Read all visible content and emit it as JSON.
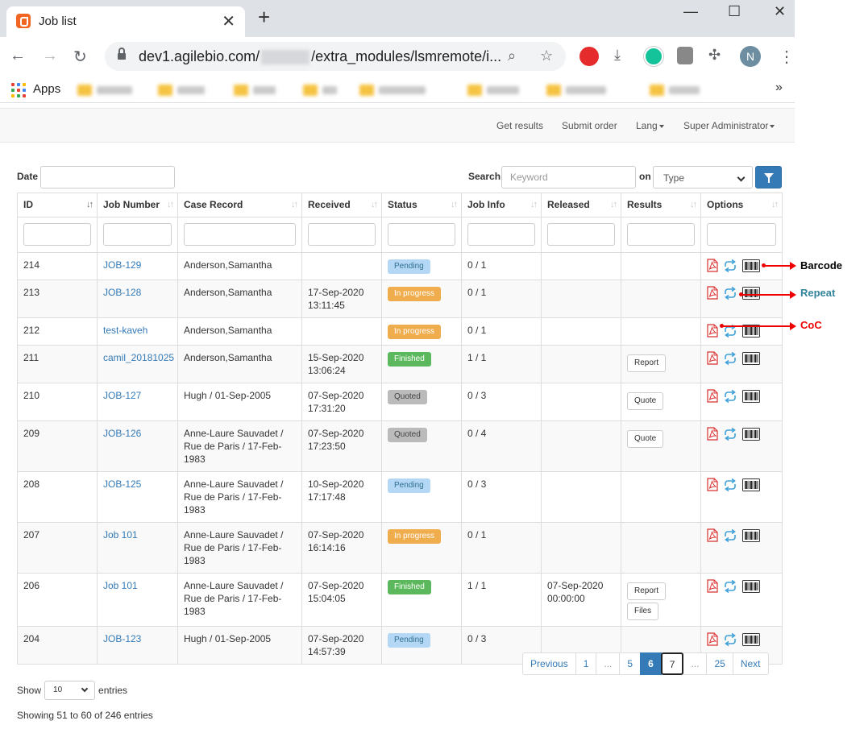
{
  "browser": {
    "tab_title": "Job list",
    "url_prefix": "dev1.agilebio.com/",
    "url_suffix": "/extra_modules/lsmremote/i...",
    "profile_initial": "N",
    "apps_label": "Apps"
  },
  "navbar": {
    "get_results": "Get results",
    "submit_order": "Submit order",
    "lang": "Lang",
    "user": "Super Administrator"
  },
  "filters": {
    "date_label": "Date",
    "search_label": "Search",
    "keyword_placeholder": "Keyword",
    "on_label": "on",
    "type_value": "Type"
  },
  "table": {
    "columns": [
      "ID",
      "Job Number",
      "Case Record",
      "Received",
      "Status",
      "Job Info",
      "Released",
      "Results",
      "Options"
    ],
    "rows": [
      {
        "id": "214",
        "job": "JOB-129",
        "case": "Anderson,Samantha",
        "received": "",
        "status": "Pending",
        "status_type": "pending",
        "info": "0 / 1",
        "released": "",
        "results": []
      },
      {
        "id": "213",
        "job": "JOB-128",
        "case": "Anderson,Samantha",
        "received": "17-Sep-2020\n13:11:45",
        "status": "In progress",
        "status_type": "progress",
        "info": "0 / 1",
        "released": "",
        "results": []
      },
      {
        "id": "212",
        "job": "test-kaveh",
        "case": "Anderson,Samantha",
        "received": "",
        "status": "In progress",
        "status_type": "progress",
        "info": "0 / 1",
        "released": "",
        "results": []
      },
      {
        "id": "211",
        "job": "camil_20181025",
        "case": "Anderson,Samantha",
        "received": "15-Sep-2020\n13:06:24",
        "status": "Finished",
        "status_type": "finished",
        "info": "1 / 1",
        "released": "",
        "results": [
          "Report"
        ]
      },
      {
        "id": "210",
        "job": "JOB-127",
        "case": "Hugh / 01-Sep-2005",
        "received": "07-Sep-2020\n17:31:20",
        "status": "Quoted",
        "status_type": "quoted",
        "info": "0 / 3",
        "released": "",
        "results": [
          "Quote"
        ]
      },
      {
        "id": "209",
        "job": "JOB-126",
        "case": "Anne-Laure Sauvadet /\nRue de Paris / 17-Feb-\n1983",
        "received": "07-Sep-2020\n17:23:50",
        "status": "Quoted",
        "status_type": "quoted",
        "info": "0 / 4",
        "released": "",
        "results": [
          "Quote"
        ]
      },
      {
        "id": "208",
        "job": "JOB-125",
        "case": "Anne-Laure Sauvadet /\nRue de Paris / 17-Feb-\n1983",
        "received": "10-Sep-2020\n17:17:48",
        "status": "Pending",
        "status_type": "pending",
        "info": "0 / 3",
        "released": "",
        "results": []
      },
      {
        "id": "207",
        "job": "Job 101",
        "case": "Anne-Laure Sauvadet /\nRue de Paris / 17-Feb-\n1983",
        "received": "07-Sep-2020\n16:14:16",
        "status": "In progress",
        "status_type": "progress",
        "info": "0 / 1",
        "released": "",
        "results": []
      },
      {
        "id": "206",
        "job": "Job 101",
        "case": "Anne-Laure Sauvadet /\nRue de Paris / 17-Feb-\n1983",
        "received": "07-Sep-2020\n15:04:05",
        "status": "Finished",
        "status_type": "finished",
        "info": "1 / 1",
        "released": "07-Sep-2020\n00:00:00",
        "results": [
          "Report",
          "Files"
        ]
      },
      {
        "id": "204",
        "job": "JOB-123",
        "case": "Hugh / 01-Sep-2005",
        "received": "07-Sep-2020\n14:57:39",
        "status": "Pending",
        "status_type": "pending",
        "info": "0 / 3",
        "released": "",
        "results": []
      }
    ]
  },
  "annotations": {
    "barcode": "Barcode",
    "repeat": "Repeat",
    "coc": "CoC",
    "colors": {
      "barcode": "#000000",
      "repeat": "#31849b",
      "coc": "#e00000",
      "arrow": "#e00000"
    }
  },
  "pagination": {
    "pages": [
      "Previous",
      "1",
      "...",
      "5",
      "6",
      "7",
      "...",
      "25",
      "Next"
    ],
    "active": "6",
    "focused": "7"
  },
  "footer": {
    "show_label": "Show",
    "show_value": "10",
    "entries_label": "entries",
    "info": "Showing 51 to 60 of 246 entries"
  },
  "colors": {
    "primary": "#337ab7",
    "pending": "#b3d7f5",
    "progress": "#f0ad4e",
    "finished": "#5cb85c",
    "quoted": "#bbbbbb"
  }
}
